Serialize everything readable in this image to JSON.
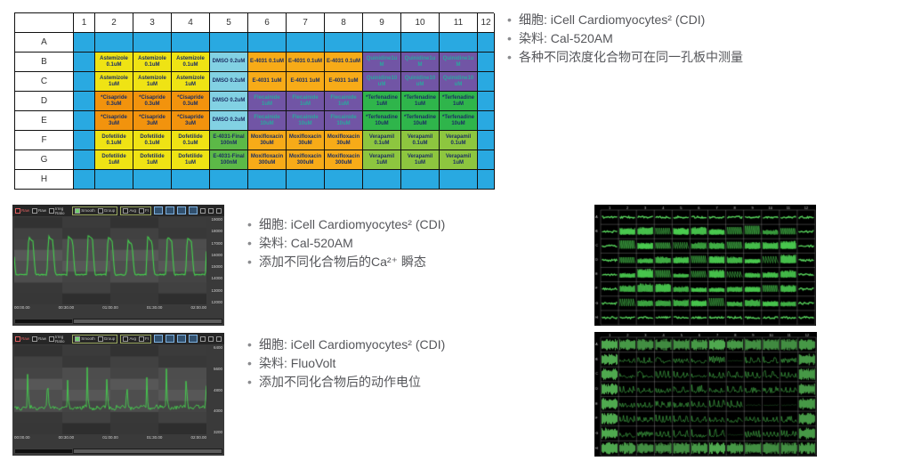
{
  "colors": {
    "blue": "#29A9E1",
    "yellow": "#EFE314",
    "orange_cis": "#F2930D",
    "orange_e": "#F7AB18",
    "cyan_dmso": "#82D1E3",
    "green_e4031f": "#5CB947",
    "purple": "#7155A5",
    "green_terf": "#2FB54B",
    "lgreen_verap": "#8DC63F",
    "well_text": "#1C2F63",
    "purple_text": "#2BA79E",
    "trace_green": "#45D24E",
    "bullet_text": "#55565A"
  },
  "plate": {
    "col_headers": [
      "",
      "1",
      "2",
      "3",
      "4",
      "5",
      "6",
      "7",
      "8",
      "9",
      "10",
      "11",
      "12"
    ],
    "rows": [
      {
        "label": "A",
        "cells": [
          [
            "b",
            ""
          ],
          [
            "b",
            ""
          ],
          [
            "b",
            ""
          ],
          [
            "b",
            ""
          ],
          [
            "b",
            ""
          ],
          [
            "b",
            ""
          ],
          [
            "b",
            ""
          ],
          [
            "b",
            ""
          ],
          [
            "b",
            ""
          ],
          [
            "b",
            ""
          ],
          [
            "b",
            ""
          ],
          [
            "b",
            ""
          ]
        ]
      },
      {
        "label": "B",
        "cells": [
          [
            "b",
            ""
          ],
          [
            "y",
            "Astemizole 0.1uM"
          ],
          [
            "y",
            "Astemizole 0.1uM"
          ],
          [
            "y",
            "Astemizole 0.1uM"
          ],
          [
            "c",
            "DMSO 0.2uM"
          ],
          [
            "O",
            "E-4031 0.1uM"
          ],
          [
            "O",
            "E-4031 0.1uM"
          ],
          [
            "O",
            "E-4031 0.1uM"
          ],
          [
            "p",
            "Quinidine1u\nM"
          ],
          [
            "p",
            "Quinidine1u\nM"
          ],
          [
            "p",
            "Quinidine1u\nM"
          ],
          [
            "b",
            ""
          ]
        ]
      },
      {
        "label": "C",
        "cells": [
          [
            "b",
            ""
          ],
          [
            "y",
            "Astemizole 1uM"
          ],
          [
            "y",
            "Astemizole 1uM"
          ],
          [
            "y",
            "Astemizole 1uM"
          ],
          [
            "c",
            "DMSO 0.2uM"
          ],
          [
            "O",
            "E-4031 1uM"
          ],
          [
            "O",
            "E-4031 1uM"
          ],
          [
            "O",
            "E-4031 1uM"
          ],
          [
            "p",
            "Quinidine10\nuM"
          ],
          [
            "p",
            "Quinidine10\nuM"
          ],
          [
            "p",
            "Quinidine10\nuM"
          ],
          [
            "b",
            ""
          ]
        ]
      },
      {
        "label": "D",
        "cells": [
          [
            "b",
            ""
          ],
          [
            "o",
            "*Cisapride 0.3uM"
          ],
          [
            "o",
            "*Cisapride 0.3uM"
          ],
          [
            "o",
            "*Cisapride 0.3uM"
          ],
          [
            "c",
            "DMSO 0.2uM"
          ],
          [
            "p",
            "Flecainide 1uM"
          ],
          [
            "p",
            "Flecainide 1uM"
          ],
          [
            "p",
            "Flecainide 1uM"
          ],
          [
            "t",
            "*Terfenadine 1uM"
          ],
          [
            "t",
            "*Terfenadine 1uM"
          ],
          [
            "t",
            "*Terfenadine 1uM"
          ],
          [
            "b",
            ""
          ]
        ]
      },
      {
        "label": "E",
        "cells": [
          [
            "b",
            ""
          ],
          [
            "o",
            "*Cisapride 3uM"
          ],
          [
            "o",
            "*Cisapride 3uM"
          ],
          [
            "o",
            "*Cisapride 3uM"
          ],
          [
            "c",
            "DMSO 0.2uM"
          ],
          [
            "p",
            "Flecainide 10uM"
          ],
          [
            "p",
            "Flecainide 10uM"
          ],
          [
            "p",
            "Flecainide 10uM"
          ],
          [
            "t",
            "*Terfenadine 10uM"
          ],
          [
            "t",
            "*Terfenadine 10uM"
          ],
          [
            "t",
            "*Terfenadine 10uM"
          ],
          [
            "b",
            ""
          ]
        ]
      },
      {
        "label": "F",
        "cells": [
          [
            "b",
            ""
          ],
          [
            "y",
            "Dofetilide 0.1uM"
          ],
          [
            "y",
            "Dofetilide 0.1uM"
          ],
          [
            "y",
            "Dofetilide 0.1uM"
          ],
          [
            "g",
            "E-4031-Final 100nM"
          ],
          [
            "O",
            "Moxifloxacin 30uM"
          ],
          [
            "O",
            "Moxifloxacin 30uM"
          ],
          [
            "O",
            "Moxifloxacin 30uM"
          ],
          [
            "l",
            "Verapamil 0.1uM"
          ],
          [
            "l",
            "Verapamil 0.1uM"
          ],
          [
            "l",
            "Verapamil 0.1uM"
          ],
          [
            "b",
            ""
          ]
        ]
      },
      {
        "label": "G",
        "cells": [
          [
            "b",
            ""
          ],
          [
            "y",
            "Dofetilide 1uM"
          ],
          [
            "y",
            "Dofetilide 1uM"
          ],
          [
            "y",
            "Dofetilide 1uM"
          ],
          [
            "g",
            "E-4031-Final 100nM"
          ],
          [
            "O",
            "Moxifloxacin 300uM"
          ],
          [
            "O",
            "Moxifloxacin 300uM"
          ],
          [
            "O",
            "Moxifloxacin 300uM"
          ],
          [
            "l",
            "Verapamil 1uM"
          ],
          [
            "l",
            "Verapamil 1uM"
          ],
          [
            "l",
            "Verapamil 1uM"
          ],
          [
            "b",
            ""
          ]
        ]
      },
      {
        "label": "H",
        "cells": [
          [
            "b",
            ""
          ],
          [
            "b",
            ""
          ],
          [
            "b",
            ""
          ],
          [
            "b",
            ""
          ],
          [
            "b",
            ""
          ],
          [
            "b",
            ""
          ],
          [
            "b",
            ""
          ],
          [
            "b",
            ""
          ],
          [
            "b",
            ""
          ],
          [
            "b",
            ""
          ],
          [
            "b",
            ""
          ],
          [
            "b",
            ""
          ]
        ]
      }
    ]
  },
  "bullets": {
    "block1": {
      "items": [
        "细胞: iCell Cardiomyocytes² (CDI)",
        "染料: Cal-520AM",
        "各种不同浓度化合物可在同一孔板中测量"
      ]
    },
    "block2": {
      "items": [
        "细胞: iCell Cardiomyocytes² (CDI)",
        "染料: Cal-520AM",
        "添加不同化合物后的Ca²⁺ 瞬态"
      ]
    },
    "block3": {
      "items": [
        "细胞: iCell Cardiomyocytes² (CDI)",
        "染料: FluoVolt",
        "添加不同化合物后的动作电位"
      ]
    }
  },
  "trace_panels": [
    {
      "name": "calcium-transient-trace",
      "toolbar": [
        "Raw",
        "Raw",
        "Irreg Ratio",
        "Smooth",
        "Group",
        "Avg",
        "FI"
      ],
      "y_ticks": [
        "19000",
        "18000",
        "17000",
        "16000",
        "15000",
        "14000",
        "13000",
        "12000"
      ],
      "x_ticks": [
        "00:00.00",
        "00:30.00",
        "01:00.00",
        "01:30.00",
        "02:00.00"
      ],
      "wave": "calcium",
      "peaks": 10
    },
    {
      "name": "action-potential-trace",
      "toolbar": [
        "Raw",
        "Raw",
        "Irreg Ratio",
        "Smooth",
        "Group",
        "Avg",
        "FI"
      ],
      "y_ticks": [
        "6400",
        "5600",
        "4800",
        "4000",
        "3200"
      ],
      "x_ticks": [
        "00:00.00",
        "00:30.00",
        "01:00.00",
        "01:30.00",
        "02:00.00"
      ],
      "wave": "voltage",
      "peaks": 10
    }
  ],
  "grid_panels": [
    {
      "name": "plate-traces-calcium",
      "cols": [
        "1",
        "2",
        "3",
        "4",
        "5",
        "6",
        "7",
        "8",
        "9",
        "10",
        "11",
        "12"
      ],
      "rows": [
        "A",
        "B",
        "C",
        "D",
        "E",
        "F",
        "G",
        "H"
      ],
      "style": "thin",
      "seed": 7
    },
    {
      "name": "plate-traces-voltage",
      "cols": [
        "1",
        "2",
        "3",
        "4",
        "5",
        "6",
        "7",
        "8",
        "9",
        "10",
        "11",
        "12"
      ],
      "rows": [
        "A",
        "B",
        "C",
        "D",
        "E",
        "F",
        "G",
        "H"
      ],
      "style": "noisy",
      "seed": 21
    }
  ]
}
